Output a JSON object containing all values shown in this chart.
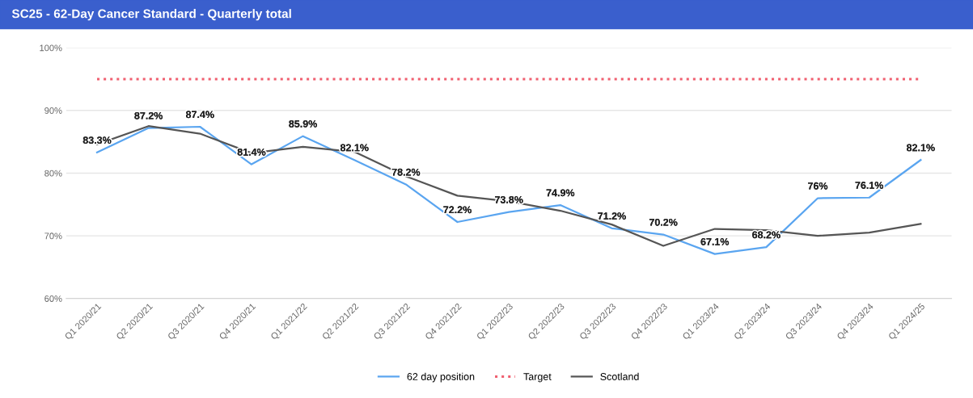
{
  "chart_data": {
    "type": "line",
    "title": "SC25 - 62-Day Cancer Standard - Quarterly total",
    "categories": [
      "Q1 2020/21",
      "Q2 2020/21",
      "Q3 2020/21",
      "Q4 2020/21",
      "Q1 2021/22",
      "Q2 2021/22",
      "Q3 2021/22",
      "Q4 2021/22",
      "Q1 2022/23",
      "Q2 2022/23",
      "Q3 2022/23",
      "Q4 2022/23",
      "Q1 2023/24",
      "Q2 2023/24",
      "Q3 2023/24",
      "Q4 2023/24",
      "Q1 2024/25"
    ],
    "series": [
      {
        "name": "62 day position",
        "color": "#5aa5f0",
        "line_style": "solid",
        "values": [
          83.3,
          87.2,
          87.4,
          81.4,
          85.9,
          82.1,
          78.2,
          72.2,
          73.8,
          74.9,
          71.2,
          70.2,
          67.1,
          68.2,
          76,
          76.1,
          82.1
        ],
        "value_labels": [
          "83.3%",
          "87.2%",
          "87.4%",
          "81.4%",
          "85.9%",
          "82.1%",
          "78.2%",
          "72.2%",
          "73.8%",
          "74.9%",
          "71.2%",
          "70.2%",
          "67.1%",
          "68.2%",
          "76%",
          "76.1%",
          "82.1%"
        ]
      },
      {
        "name": "Target",
        "color": "#f06070",
        "line_style": "dotted",
        "values": [
          95,
          95,
          95,
          95,
          95,
          95,
          95,
          95,
          95,
          95,
          95,
          95,
          95,
          95,
          95,
          95,
          95
        ]
      },
      {
        "name": "Scotland",
        "color": "#555555",
        "line_style": "solid",
        "values": [
          84.6,
          87.5,
          86.3,
          83.2,
          84.2,
          83.4,
          79.5,
          76.4,
          75.5,
          74.0,
          71.8,
          68.4,
          71.1,
          70.9,
          70.0,
          70.5,
          71.9
        ]
      }
    ],
    "ylim": [
      60,
      100
    ],
    "yticks": [
      {
        "value": 60,
        "label": "60%"
      },
      {
        "value": 70,
        "label": "70%"
      },
      {
        "value": 80,
        "label": "80%"
      },
      {
        "value": 90,
        "label": "90%"
      },
      {
        "value": 100,
        "label": "100%"
      }
    ],
    "grid": "y",
    "legend": "bottom",
    "marker": "none"
  }
}
